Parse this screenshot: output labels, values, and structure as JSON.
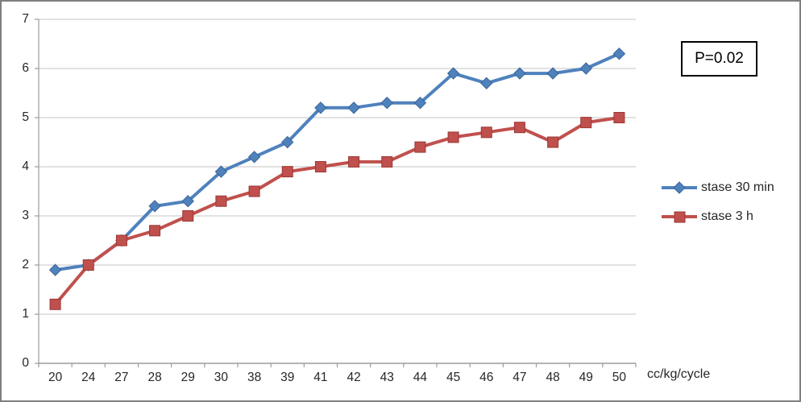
{
  "chart_data": {
    "type": "line",
    "title": "",
    "categories": [
      "20",
      "24",
      "27",
      "28",
      "29",
      "30",
      "38",
      "39",
      "41",
      "42",
      "43",
      "44",
      "45",
      "46",
      "47",
      "48",
      "49",
      "50"
    ],
    "series": [
      {
        "name": "stase 30 min",
        "marker": "diamond",
        "color": "#4F81BD",
        "marker_edge": "#3A6596",
        "values": [
          1.9,
          2.0,
          2.5,
          3.2,
          3.3,
          3.9,
          4.2,
          4.5,
          5.2,
          5.2,
          5.3,
          5.3,
          5.9,
          5.7,
          5.9,
          5.9,
          6.0,
          6.3
        ]
      },
      {
        "name": "stase 3 h",
        "marker": "square",
        "color": "#C0504D",
        "marker_edge": "#9A3734",
        "values": [
          1.2,
          2.0,
          2.5,
          2.7,
          3.0,
          3.3,
          3.5,
          3.9,
          4.0,
          4.1,
          4.1,
          4.4,
          4.6,
          4.7,
          4.8,
          4.5,
          4.9,
          5.0
        ]
      }
    ],
    "xlabel": "cc/kg/cycle",
    "ylabel": "",
    "ylim": [
      0,
      7
    ],
    "yticks": [
      0,
      1,
      2,
      3,
      4,
      5,
      6,
      7
    ],
    "grid": true,
    "legend_position": "right",
    "annotation": "P=0.02",
    "colors": {
      "grid": "#C4C4C4",
      "axis": "#9C9C9C",
      "text": "#262626",
      "background": "#FFFFFF",
      "frame_border": "#7F7F7F",
      "annotation_border": "#000000"
    }
  }
}
